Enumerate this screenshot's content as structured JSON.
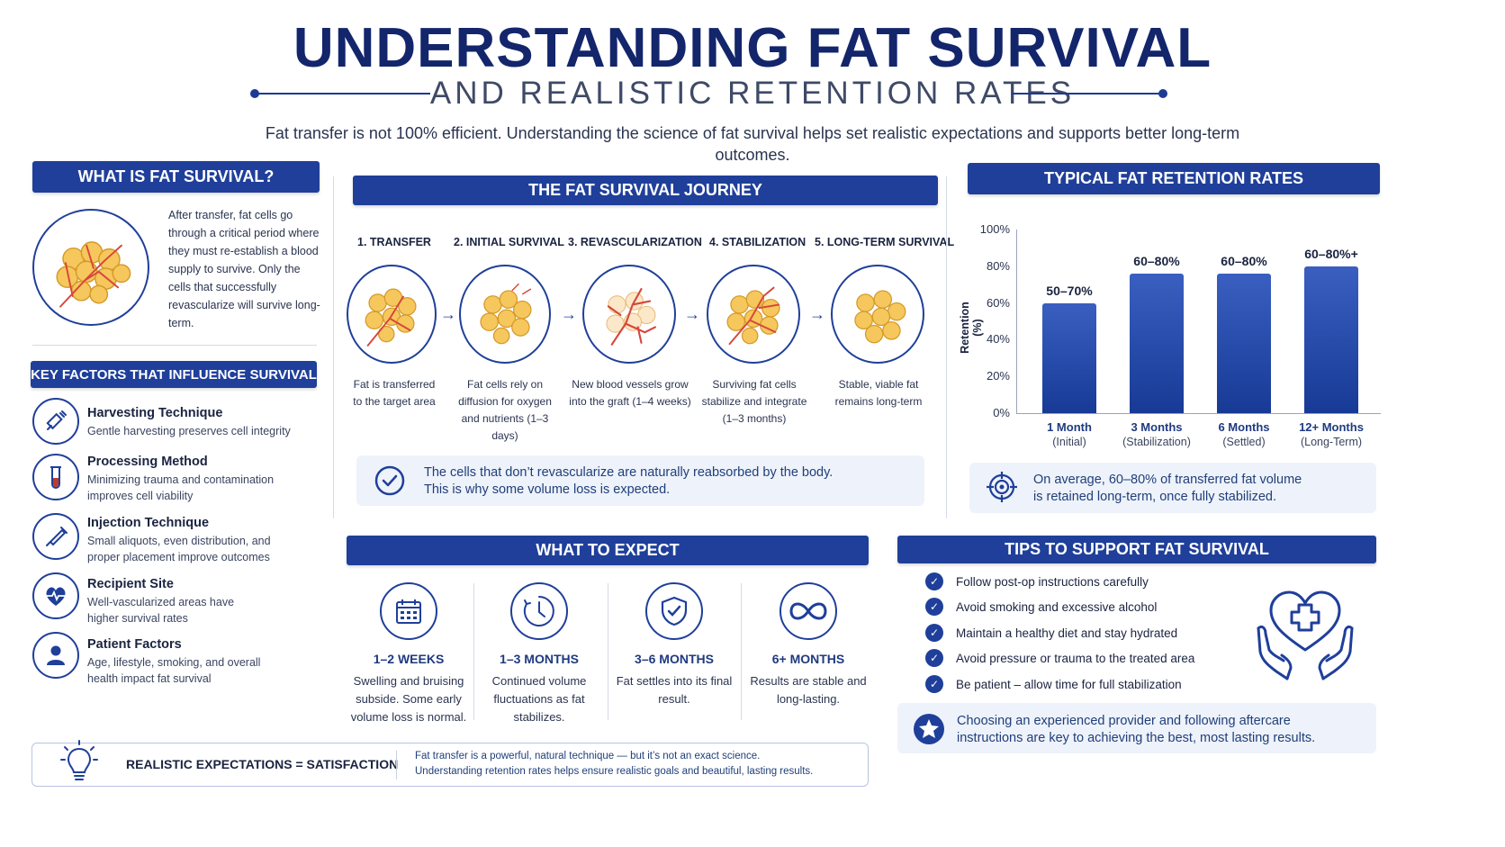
{
  "title": "UNDERSTANDING FAT SURVIVAL",
  "subtitle": "AND REALISTIC RETENTION RATES",
  "intro": "Fat transfer is not 100% efficient. Understanding the science of fat survival helps set realistic expectations and supports better long-term outcomes.",
  "what_is": {
    "header": "WHAT IS FAT SURVIVAL?",
    "text": "After transfer, fat cells go through a critical period where they must re-establish a blood supply to survive. Only the cells that successfully revascularize will survive long-term."
  },
  "key_factors": {
    "header": "KEY FACTORS THAT INFLUENCE SURVIVAL",
    "items": [
      {
        "title": "Harvesting Technique",
        "desc": "Gentle harvesting preserves cell integrity",
        "icon": "syringe-icon"
      },
      {
        "title": "Processing Method",
        "desc": "Minimizing trauma and contamination improves cell viability",
        "icon": "test-tube-icon"
      },
      {
        "title": "Injection Technique",
        "desc": "Small aliquots, even distribution, and proper placement improve outcomes",
        "icon": "injection-pen-icon"
      },
      {
        "title": "Recipient Site",
        "desc": "Well-vascularized areas have higher survival rates",
        "icon": "heartbeat-icon"
      },
      {
        "title": "Patient Factors",
        "desc": "Age, lifestyle, smoking, and overall health impact fat survival",
        "icon": "person-icon"
      }
    ]
  },
  "journey": {
    "header": "THE FAT SURVIVAL JOURNEY",
    "steps": [
      {
        "label": "1. TRANSFER",
        "desc": "Fat is transferred to the target area"
      },
      {
        "label": "2. INITIAL SURVIVAL",
        "desc": "Fat cells rely on diffusion for oxygen and nutrients (1–3 days)"
      },
      {
        "label": "3. REVASCULARIZATION",
        "desc": "New blood vessels grow into the graft (1–4 weeks)"
      },
      {
        "label": "4. STABILIZATION",
        "desc": "Surviving fat cells stabilize and integrate (1–3 months)"
      },
      {
        "label": "5. LONG-TERM SURVIVAL",
        "desc": "Stable, viable fat remains long-term"
      }
    ],
    "note_line1": "The cells that don’t revascularize are naturally reabsorbed by the body.",
    "note_line2": "This is why some volume loss is expected."
  },
  "retention": {
    "header": "TYPICAL FAT RETENTION RATES",
    "note_line1": "On average, 60–80% of transferred fat volume",
    "note_line2": "is retained long-term, once fully stabilized."
  },
  "chart_data": {
    "type": "bar",
    "title": "TYPICAL FAT RETENTION RATES",
    "ylabel": "Retention (%)",
    "ylim": [
      0,
      100
    ],
    "yticks": [
      "100%",
      "80%",
      "60%",
      "40%",
      "20%",
      "0%"
    ],
    "categories": [
      "1 Month",
      "3 Months",
      "6 Months",
      "12+ Months"
    ],
    "category_sub": [
      "(Initial)",
      "(Stabilization)",
      "(Settled)",
      "(Long-Term)"
    ],
    "values": [
      60,
      76,
      76,
      80
    ],
    "data_labels": [
      "50–70%",
      "60–80%",
      "60–80%",
      "60–80%+"
    ],
    "grid": false,
    "color": "#1f3f9a"
  },
  "expect": {
    "header": "WHAT TO EXPECT",
    "items": [
      {
        "title": "1–2 WEEKS",
        "desc": "Swelling and bruising subside. Some early volume loss is normal.",
        "icon": "calendar-icon"
      },
      {
        "title": "1–3 MONTHS",
        "desc": "Continued volume fluctuations as fat stabilizes.",
        "icon": "clock-icon"
      },
      {
        "title": "3–6 MONTHS",
        "desc": "Fat settles into its final result.",
        "icon": "shield-check-icon"
      },
      {
        "title": "6+ MONTHS",
        "desc": "Results are stable and long-lasting.",
        "icon": "infinity-icon"
      }
    ]
  },
  "tips": {
    "header": "TIPS TO SUPPORT FAT SURVIVAL",
    "items": [
      "Follow post-op instructions carefully",
      "Avoid smoking and excessive alcohol",
      "Maintain a healthy diet and stay hydrated",
      "Avoid pressure or trauma to the treated area",
      "Be patient – allow time for full stabilization"
    ],
    "note_line1": "Choosing an experienced provider and following aftercare",
    "note_line2": "instructions are key to achieving the best, most lasting results."
  },
  "footer": {
    "label": "REALISTIC EXPECTATIONS = SATISFACTION",
    "line1": "Fat transfer is a powerful, natural technique — but it’s not an exact science.",
    "line2": "Understanding retention rates helps ensure realistic goals and beautiful, lasting results."
  }
}
